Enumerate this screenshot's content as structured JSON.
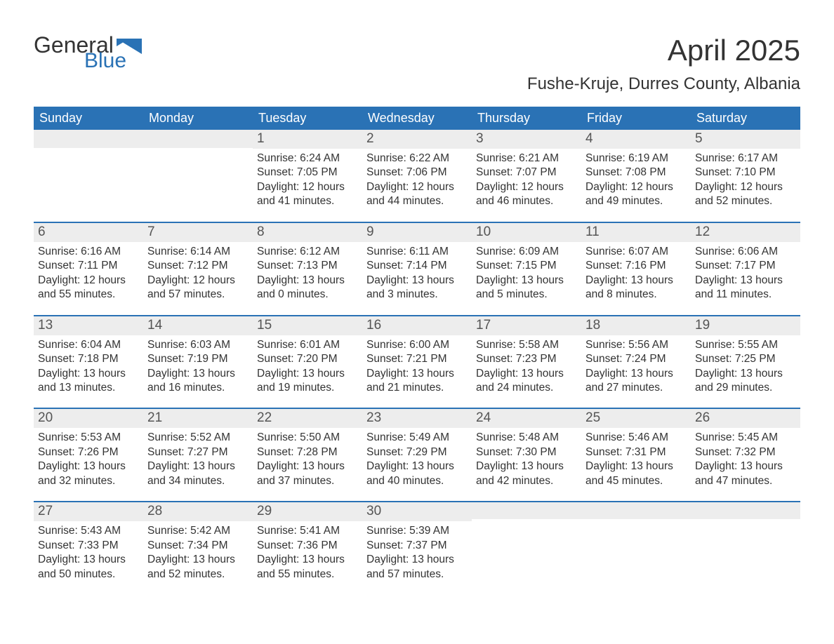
{
  "brand": {
    "word1": "General",
    "word2": "Blue",
    "shape_color": "#2a72b5"
  },
  "title": "April 2025",
  "location": "Fushe-Kruje, Durres County, Albania",
  "colors": {
    "header_bg": "#2a72b5",
    "header_text": "#ffffff",
    "strip_bg": "#ededed",
    "strip_border": "#2a72b5",
    "body_text": "#333333",
    "day_num_text": "#555555",
    "page_bg": "#ffffff"
  },
  "typography": {
    "month_title_fontsize": 42,
    "location_fontsize": 24,
    "dow_fontsize": 18,
    "daynum_fontsize": 19,
    "body_fontsize": 15.5
  },
  "day_names": [
    "Sunday",
    "Monday",
    "Tuesday",
    "Wednesday",
    "Thursday",
    "Friday",
    "Saturday"
  ],
  "first_week_no_top_border": true,
  "weeks": [
    [
      {
        "day": "",
        "lines": [
          "",
          "",
          "",
          ""
        ]
      },
      {
        "day": "",
        "lines": [
          "",
          "",
          "",
          ""
        ]
      },
      {
        "day": "1",
        "lines": [
          "Sunrise: 6:24 AM",
          "Sunset: 7:05 PM",
          "Daylight: 12 hours",
          "and 41 minutes."
        ]
      },
      {
        "day": "2",
        "lines": [
          "Sunrise: 6:22 AM",
          "Sunset: 7:06 PM",
          "Daylight: 12 hours",
          "and 44 minutes."
        ]
      },
      {
        "day": "3",
        "lines": [
          "Sunrise: 6:21 AM",
          "Sunset: 7:07 PM",
          "Daylight: 12 hours",
          "and 46 minutes."
        ]
      },
      {
        "day": "4",
        "lines": [
          "Sunrise: 6:19 AM",
          "Sunset: 7:08 PM",
          "Daylight: 12 hours",
          "and 49 minutes."
        ]
      },
      {
        "day": "5",
        "lines": [
          "Sunrise: 6:17 AM",
          "Sunset: 7:10 PM",
          "Daylight: 12 hours",
          "and 52 minutes."
        ]
      }
    ],
    [
      {
        "day": "6",
        "lines": [
          "Sunrise: 6:16 AM",
          "Sunset: 7:11 PM",
          "Daylight: 12 hours",
          "and 55 minutes."
        ]
      },
      {
        "day": "7",
        "lines": [
          "Sunrise: 6:14 AM",
          "Sunset: 7:12 PM",
          "Daylight: 12 hours",
          "and 57 minutes."
        ]
      },
      {
        "day": "8",
        "lines": [
          "Sunrise: 6:12 AM",
          "Sunset: 7:13 PM",
          "Daylight: 13 hours",
          "and 0 minutes."
        ]
      },
      {
        "day": "9",
        "lines": [
          "Sunrise: 6:11 AM",
          "Sunset: 7:14 PM",
          "Daylight: 13 hours",
          "and 3 minutes."
        ]
      },
      {
        "day": "10",
        "lines": [
          "Sunrise: 6:09 AM",
          "Sunset: 7:15 PM",
          "Daylight: 13 hours",
          "and 5 minutes."
        ]
      },
      {
        "day": "11",
        "lines": [
          "Sunrise: 6:07 AM",
          "Sunset: 7:16 PM",
          "Daylight: 13 hours",
          "and 8 minutes."
        ]
      },
      {
        "day": "12",
        "lines": [
          "Sunrise: 6:06 AM",
          "Sunset: 7:17 PM",
          "Daylight: 13 hours",
          "and 11 minutes."
        ]
      }
    ],
    [
      {
        "day": "13",
        "lines": [
          "Sunrise: 6:04 AM",
          "Sunset: 7:18 PM",
          "Daylight: 13 hours",
          "and 13 minutes."
        ]
      },
      {
        "day": "14",
        "lines": [
          "Sunrise: 6:03 AM",
          "Sunset: 7:19 PM",
          "Daylight: 13 hours",
          "and 16 minutes."
        ]
      },
      {
        "day": "15",
        "lines": [
          "Sunrise: 6:01 AM",
          "Sunset: 7:20 PM",
          "Daylight: 13 hours",
          "and 19 minutes."
        ]
      },
      {
        "day": "16",
        "lines": [
          "Sunrise: 6:00 AM",
          "Sunset: 7:21 PM",
          "Daylight: 13 hours",
          "and 21 minutes."
        ]
      },
      {
        "day": "17",
        "lines": [
          "Sunrise: 5:58 AM",
          "Sunset: 7:23 PM",
          "Daylight: 13 hours",
          "and 24 minutes."
        ]
      },
      {
        "day": "18",
        "lines": [
          "Sunrise: 5:56 AM",
          "Sunset: 7:24 PM",
          "Daylight: 13 hours",
          "and 27 minutes."
        ]
      },
      {
        "day": "19",
        "lines": [
          "Sunrise: 5:55 AM",
          "Sunset: 7:25 PM",
          "Daylight: 13 hours",
          "and 29 minutes."
        ]
      }
    ],
    [
      {
        "day": "20",
        "lines": [
          "Sunrise: 5:53 AM",
          "Sunset: 7:26 PM",
          "Daylight: 13 hours",
          "and 32 minutes."
        ]
      },
      {
        "day": "21",
        "lines": [
          "Sunrise: 5:52 AM",
          "Sunset: 7:27 PM",
          "Daylight: 13 hours",
          "and 34 minutes."
        ]
      },
      {
        "day": "22",
        "lines": [
          "Sunrise: 5:50 AM",
          "Sunset: 7:28 PM",
          "Daylight: 13 hours",
          "and 37 minutes."
        ]
      },
      {
        "day": "23",
        "lines": [
          "Sunrise: 5:49 AM",
          "Sunset: 7:29 PM",
          "Daylight: 13 hours",
          "and 40 minutes."
        ]
      },
      {
        "day": "24",
        "lines": [
          "Sunrise: 5:48 AM",
          "Sunset: 7:30 PM",
          "Daylight: 13 hours",
          "and 42 minutes."
        ]
      },
      {
        "day": "25",
        "lines": [
          "Sunrise: 5:46 AM",
          "Sunset: 7:31 PM",
          "Daylight: 13 hours",
          "and 45 minutes."
        ]
      },
      {
        "day": "26",
        "lines": [
          "Sunrise: 5:45 AM",
          "Sunset: 7:32 PM",
          "Daylight: 13 hours",
          "and 47 minutes."
        ]
      }
    ],
    [
      {
        "day": "27",
        "lines": [
          "Sunrise: 5:43 AM",
          "Sunset: 7:33 PM",
          "Daylight: 13 hours",
          "and 50 minutes."
        ]
      },
      {
        "day": "28",
        "lines": [
          "Sunrise: 5:42 AM",
          "Sunset: 7:34 PM",
          "Daylight: 13 hours",
          "and 52 minutes."
        ]
      },
      {
        "day": "29",
        "lines": [
          "Sunrise: 5:41 AM",
          "Sunset: 7:36 PM",
          "Daylight: 13 hours",
          "and 55 minutes."
        ]
      },
      {
        "day": "30",
        "lines": [
          "Sunrise: 5:39 AM",
          "Sunset: 7:37 PM",
          "Daylight: 13 hours",
          "and 57 minutes."
        ]
      },
      {
        "day": "",
        "lines": [
          "",
          "",
          "",
          ""
        ]
      },
      {
        "day": "",
        "lines": [
          "",
          "",
          "",
          ""
        ]
      },
      {
        "day": "",
        "lines": [
          "",
          "",
          "",
          ""
        ]
      }
    ]
  ]
}
